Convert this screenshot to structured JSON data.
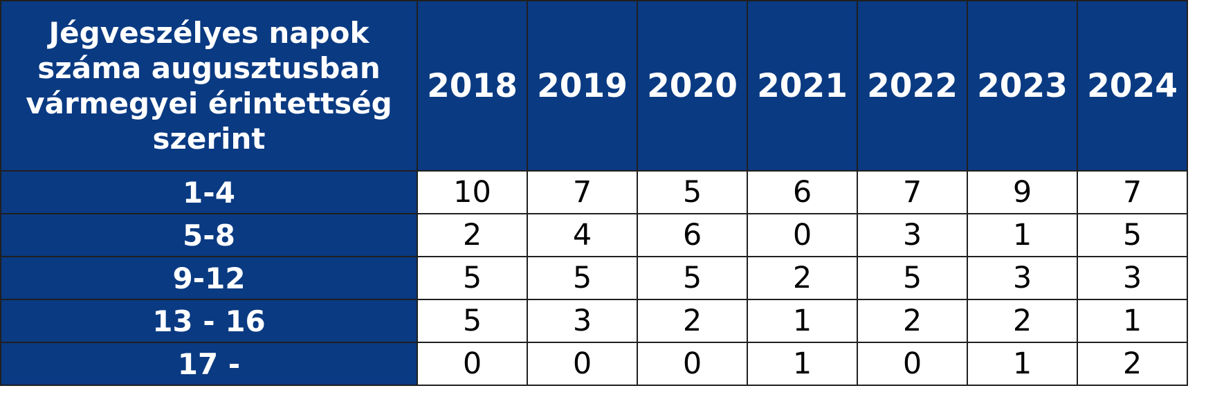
{
  "chart_data": {
    "type": "table",
    "title": "Jégveszélyes napok száma augusztusban vármegyei érintettség szerint",
    "columns": [
      "2018",
      "2019",
      "2020",
      "2021",
      "2022",
      "2023",
      "2024"
    ],
    "rows": [
      {
        "label": "1-4",
        "values": [
          10,
          7,
          5,
          6,
          7,
          9,
          7
        ]
      },
      {
        "label": "5-8",
        "values": [
          2,
          4,
          6,
          0,
          3,
          1,
          5
        ]
      },
      {
        "label": "9-12",
        "values": [
          5,
          5,
          5,
          2,
          5,
          3,
          3
        ]
      },
      {
        "label": "13 - 16",
        "values": [
          5,
          3,
          2,
          1,
          2,
          2,
          1
        ]
      },
      {
        "label": "17 -",
        "values": [
          0,
          0,
          0,
          1,
          0,
          1,
          2
        ]
      }
    ]
  },
  "colors": {
    "header_background": "#0a3a82",
    "header_text": "#ffffff",
    "cell_background": "#ffffff",
    "cell_text": "#000000",
    "border": "#1f1f1f"
  }
}
